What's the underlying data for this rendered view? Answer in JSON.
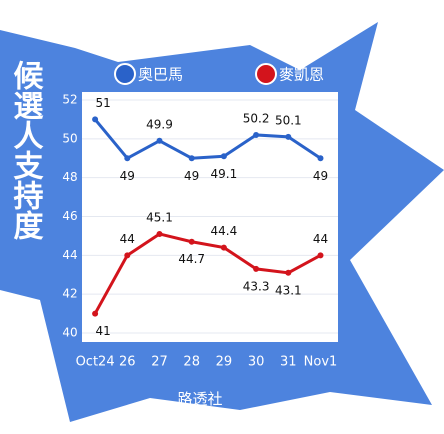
{
  "chart_data": {
    "type": "line",
    "title": "候選人支持度",
    "categories": [
      "Oct24",
      "26",
      "27",
      "28",
      "29",
      "30",
      "31",
      "Nov1"
    ],
    "series": [
      {
        "name": "奧巴馬",
        "color": "#2a62c9",
        "values": [
          51,
          49,
          49.9,
          49,
          49.1,
          50.2,
          50.1,
          49
        ]
      },
      {
        "name": "麥凱恩",
        "color": "#d3141c",
        "values": [
          41,
          44,
          45.1,
          44.7,
          44.4,
          43.3,
          43.1,
          44
        ]
      }
    ],
    "ylim": [
      40,
      52
    ],
    "yticks": [
      40,
      42,
      44,
      46,
      48,
      50,
      52
    ],
    "grid": true,
    "source": "路透社"
  }
}
